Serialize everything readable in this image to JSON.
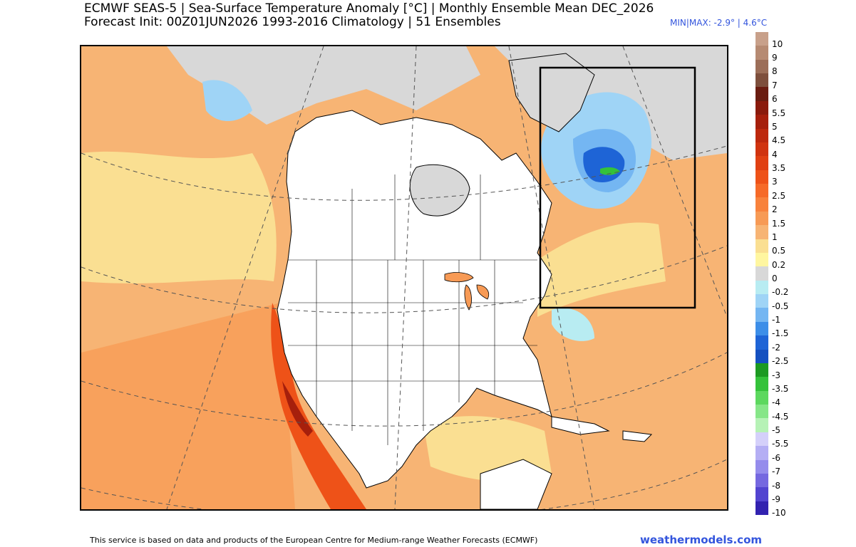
{
  "header": {
    "title_line1": "ECMWF SEAS-5 | Sea-Surface Temperature Anomaly [°C] | Monthly Ensemble Mean DEC_2026",
    "title_line2": "Forecast Init: 00Z01JUN2026     1993-2016 Climatology | 51 Ensembles",
    "minmax": "MIN|MAX: -2.9° | 4.6°C"
  },
  "legend": {
    "items": [
      {
        "label": "10",
        "color": "#c8a08a"
      },
      {
        "label": "9",
        "color": "#b68a72"
      },
      {
        "label": "8",
        "color": "#9c6e58"
      },
      {
        "label": "7",
        "color": "#7e4f3c"
      },
      {
        "label": "6",
        "color": "#6a1c10"
      },
      {
        "label": "5.5",
        "color": "#8a1a0c"
      },
      {
        "label": "5",
        "color": "#a61f0c"
      },
      {
        "label": "4.5",
        "color": "#bd280d"
      },
      {
        "label": "4",
        "color": "#d0330f"
      },
      {
        "label": "3.5",
        "color": "#e04012"
      },
      {
        "label": "3",
        "color": "#ee5218"
      },
      {
        "label": "2.5",
        "color": "#f66a28"
      },
      {
        "label": "2",
        "color": "#f8823c"
      },
      {
        "label": "1.5",
        "color": "#f79a55"
      },
      {
        "label": "1",
        "color": "#f7b474"
      },
      {
        "label": "0.5",
        "color": "#fadf92"
      },
      {
        "label": "0.2",
        "color": "#fff6a0"
      },
      {
        "label": "0",
        "color": "#d8d8d8"
      },
      {
        "label": "-0.2",
        "color": "#b8ecf2"
      },
      {
        "label": "-0.5",
        "color": "#9fd4f6"
      },
      {
        "label": "-1",
        "color": "#74b6f2"
      },
      {
        "label": "-1.5",
        "color": "#3c8ee8"
      },
      {
        "label": "-2",
        "color": "#1e64d6"
      },
      {
        "label": "-2.5",
        "color": "#1450c0"
      },
      {
        "label": "-3",
        "color": "#1c9a22"
      },
      {
        "label": "-3.5",
        "color": "#34c23a"
      },
      {
        "label": "-4",
        "color": "#5cd85e"
      },
      {
        "label": "-4.5",
        "color": "#86e688"
      },
      {
        "label": "-5",
        "color": "#b6f2b6"
      },
      {
        "label": "-5.5",
        "color": "#d4d0fa"
      },
      {
        "label": "-6",
        "color": "#b4aef4"
      },
      {
        "label": "-7",
        "color": "#958cec"
      },
      {
        "label": "-8",
        "color": "#7568e0"
      },
      {
        "label": "-9",
        "color": "#5244d0"
      },
      {
        "label": "-10",
        "color": "#3222b0"
      }
    ]
  },
  "footer": {
    "credit": "This service is based on data and products of the European Centre for Medium-range Weather Forecasts (ECMWF)",
    "brand": "weathermodels.com"
  }
}
